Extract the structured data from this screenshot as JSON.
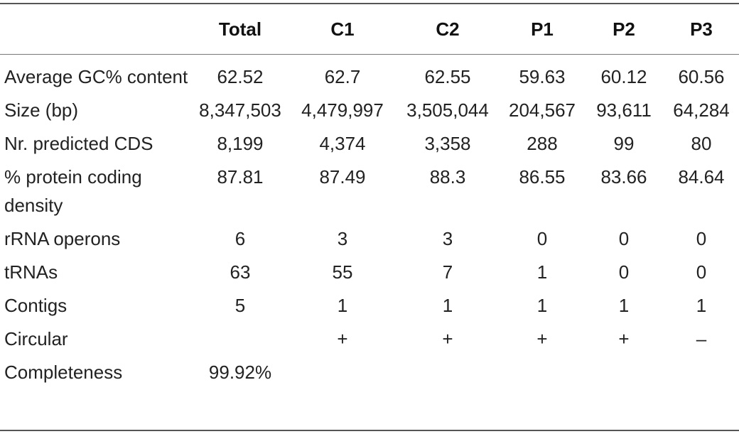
{
  "table": {
    "headers": [
      "",
      "Total",
      "C1",
      "C2",
      "P1",
      "P2",
      "P3"
    ],
    "rows": [
      {
        "label": "Average GC% content",
        "cells": [
          "62.52",
          "62.7",
          "62.55",
          "59.63",
          "60.12",
          "60.56"
        ]
      },
      {
        "label": "Size (bp)",
        "cells": [
          "8,347,503",
          "4,479,997",
          "3,505,044",
          "204,567",
          "93,611",
          "64,284"
        ]
      },
      {
        "label": "Nr. predicted CDS",
        "cells": [
          "8,199",
          "4,374",
          "3,358",
          "288",
          "99",
          "80"
        ]
      },
      {
        "label": "% protein coding density",
        "cells": [
          "87.81",
          "87.49",
          "88.3",
          "86.55",
          "83.66",
          "84.64"
        ]
      },
      {
        "label": "rRNA operons",
        "cells": [
          "6",
          "3",
          "3",
          "0",
          "0",
          "0"
        ]
      },
      {
        "label": "tRNAs",
        "cells": [
          "63",
          "55",
          "7",
          "1",
          "0",
          "0"
        ]
      },
      {
        "label": "Contigs",
        "cells": [
          "5",
          "1",
          "1",
          "1",
          "1",
          "1"
        ]
      },
      {
        "label": "Circular",
        "cells": [
          "",
          "+",
          "+",
          "+",
          "+",
          "–"
        ]
      },
      {
        "label": "Completeness",
        "cells": [
          "99.92%",
          "",
          "",
          "",
          "",
          ""
        ]
      }
    ]
  }
}
